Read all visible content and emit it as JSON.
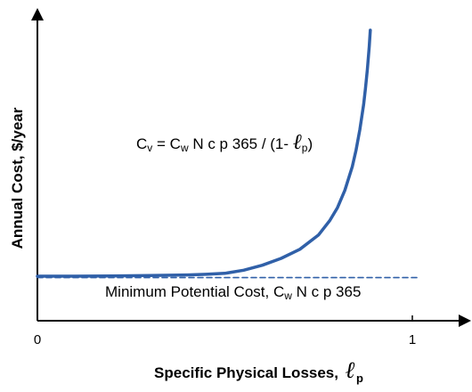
{
  "chart_data": {
    "type": "line",
    "xlabel": "Specific Physical Losses,",
    "xlabel_symbol": "ℓ",
    "xlabel_symbol_sub": "p",
    "ylabel": "Annual Cost, $/year",
    "xlim": [
      0,
      1
    ],
    "x_ticks": [
      {
        "value": 0,
        "label": "0"
      },
      {
        "value": 1,
        "label": "1"
      }
    ],
    "y_ticks": [],
    "grid": false,
    "legend": "none",
    "series": [
      {
        "style": "solid",
        "color": "#3060a8",
        "x": [
          0.0,
          0.05,
          0.1,
          0.2,
          0.3,
          0.4,
          0.45,
          0.5,
          0.55,
          0.6,
          0.65,
          0.7,
          0.75,
          0.78,
          0.8,
          0.82,
          0.84,
          0.85,
          0.86,
          0.87,
          0.875,
          0.88,
          0.885,
          0.888
        ],
        "y": [
          1.0,
          1.0,
          1.0,
          1.01,
          1.03,
          1.06,
          1.09,
          1.14,
          1.29,
          1.53,
          1.86,
          2.3,
          3.0,
          3.7,
          4.3,
          5.15,
          6.3,
          7.1,
          8.1,
          9.3,
          10.1,
          11.0,
          12.1,
          12.9
        ]
      },
      {
        "style": "dashed",
        "color": "#3060a8",
        "x": [
          0.0,
          1.0
        ],
        "y": [
          0.93,
          0.93
        ]
      }
    ],
    "annotations": [
      {
        "id": "curve-equation",
        "parts": [
          {
            "text": "C",
            "role": "main"
          },
          {
            "text": "v",
            "role": "sub"
          },
          {
            "text": " = C",
            "role": "main"
          },
          {
            "text": "w",
            "role": "sub"
          },
          {
            "text": " N c p 365 / (1- ",
            "role": "main"
          },
          {
            "text": "ℓ",
            "role": "ell"
          },
          {
            "text": "p",
            "role": "sub"
          },
          {
            "text": ")",
            "role": "main"
          }
        ]
      },
      {
        "id": "minimum-cost-label",
        "parts": [
          {
            "text": "Minimum Potential Cost, C",
            "role": "main"
          },
          {
            "text": "w",
            "role": "sub"
          },
          {
            "text": " N c p 365",
            "role": "main"
          }
        ]
      }
    ]
  }
}
